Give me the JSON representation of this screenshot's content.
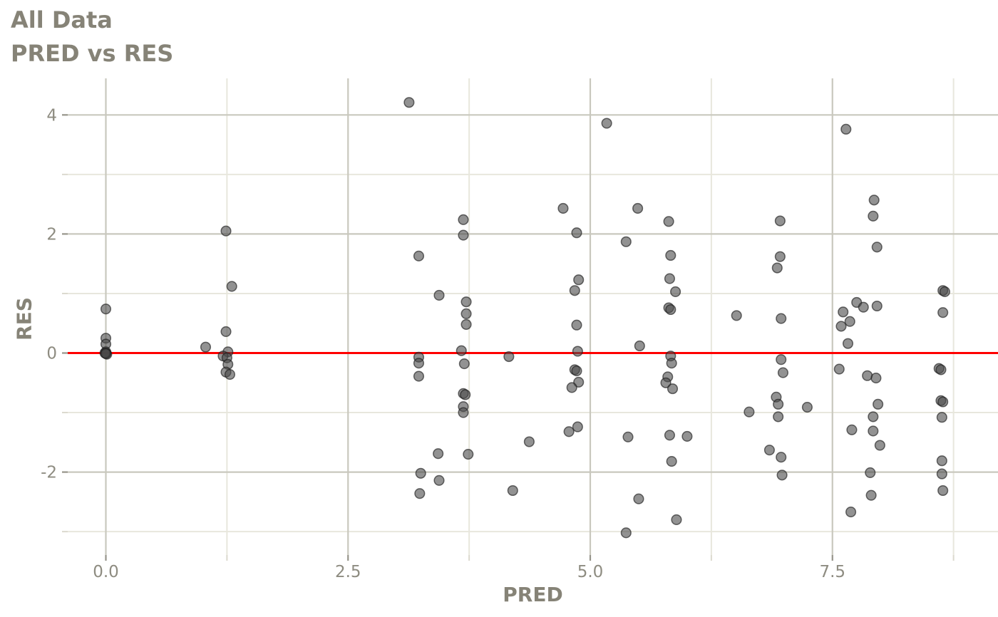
{
  "title": "All Data",
  "subtitle": "PRED vs RES",
  "chart_data": {
    "type": "scatter",
    "title": "All Data",
    "subtitle": "PRED vs RES",
    "xlabel": "PRED",
    "ylabel": "RES",
    "xlim": [
      -0.39,
      9.21
    ],
    "ylim": [
      -3.39,
      4.61
    ],
    "grid": true,
    "legend": "none",
    "x_ticks": {
      "values": [
        0,
        2.5,
        5,
        7.5
      ],
      "labels": [
        "0.0",
        "2.5",
        "5.0",
        "7.5"
      ],
      "minor": [
        1.25,
        3.75,
        6.25,
        8.75
      ]
    },
    "y_ticks": {
      "values": [
        4,
        2,
        0,
        -2
      ],
      "labels": [
        "4",
        "2",
        "0",
        "-2"
      ],
      "minor": [
        3,
        1,
        -1,
        -3
      ]
    },
    "reference_line": {
      "y": 0,
      "color": "#ff0000"
    },
    "style": {
      "major_grid_color": "#c9c8be",
      "minor_grid_color": "#e8e7dd",
      "major_tick_color": "#96948a",
      "minor_tick_color": "#dbd9ce",
      "tick_label_color": "#8e8c81",
      "point_fill": "#4a4a4a",
      "point_stroke": "#1f1f1f",
      "point_fill_opacity": 0.6,
      "point_stroke_opacity": 0.65
    },
    "points": [
      [
        0.0,
        0.74
      ],
      [
        0.0,
        0.25
      ],
      [
        0.0,
        0.15
      ],
      [
        0.0,
        0.02
      ],
      [
        0.0,
        0.0
      ],
      [
        0.01,
        -0.02
      ],
      [
        -0.01,
        0.0
      ],
      [
        0.0,
        -0.01
      ],
      [
        1.03,
        0.1
      ],
      [
        1.24,
        2.05
      ],
      [
        1.3,
        1.12
      ],
      [
        1.24,
        0.36
      ],
      [
        1.26,
        0.02
      ],
      [
        1.21,
        -0.05
      ],
      [
        1.25,
        -0.08
      ],
      [
        1.26,
        -0.19
      ],
      [
        1.24,
        -0.32
      ],
      [
        1.28,
        -0.36
      ],
      [
        3.13,
        4.21
      ],
      [
        3.23,
        1.63
      ],
      [
        3.23,
        -0.07
      ],
      [
        3.23,
        -0.17
      ],
      [
        3.23,
        -0.39
      ],
      [
        3.25,
        -2.02
      ],
      [
        3.24,
        -2.36
      ],
      [
        3.44,
        0.97
      ],
      [
        3.43,
        -1.69
      ],
      [
        3.44,
        -2.14
      ],
      [
        3.69,
        2.24
      ],
      [
        3.69,
        1.98
      ],
      [
        3.72,
        0.86
      ],
      [
        3.72,
        0.66
      ],
      [
        3.72,
        0.48
      ],
      [
        3.67,
        0.04
      ],
      [
        3.7,
        -0.18
      ],
      [
        3.69,
        -0.68
      ],
      [
        3.71,
        -0.7
      ],
      [
        3.69,
        -0.9
      ],
      [
        3.69,
        -1.0
      ],
      [
        3.74,
        -1.7
      ],
      [
        4.16,
        -0.06
      ],
      [
        4.37,
        -1.49
      ],
      [
        4.2,
        -2.31
      ],
      [
        4.72,
        2.43
      ],
      [
        4.86,
        2.02
      ],
      [
        4.88,
        1.23
      ],
      [
        4.84,
        1.05
      ],
      [
        4.86,
        0.47
      ],
      [
        4.87,
        0.03
      ],
      [
        4.84,
        -0.28
      ],
      [
        4.86,
        -0.3
      ],
      [
        4.88,
        -0.49
      ],
      [
        4.81,
        -0.58
      ],
      [
        4.87,
        -1.24
      ],
      [
        4.78,
        -1.32
      ],
      [
        5.17,
        3.86
      ],
      [
        5.49,
        2.43
      ],
      [
        5.37,
        1.87
      ],
      [
        5.51,
        0.12
      ],
      [
        5.39,
        -1.41
      ],
      [
        5.5,
        -2.45
      ],
      [
        5.37,
        -3.02
      ],
      [
        5.81,
        2.21
      ],
      [
        5.83,
        1.64
      ],
      [
        5.82,
        1.25
      ],
      [
        5.88,
        1.03
      ],
      [
        5.81,
        0.76
      ],
      [
        5.83,
        0.73
      ],
      [
        5.83,
        -0.05
      ],
      [
        5.84,
        -0.17
      ],
      [
        5.8,
        -0.4
      ],
      [
        5.78,
        -0.5
      ],
      [
        5.85,
        -0.6
      ],
      [
        5.82,
        -1.38
      ],
      [
        6.0,
        -1.4
      ],
      [
        5.84,
        -1.82
      ],
      [
        5.89,
        -2.8
      ],
      [
        6.51,
        0.63
      ],
      [
        6.64,
        -0.99
      ],
      [
        6.85,
        -1.63
      ],
      [
        6.96,
        2.22
      ],
      [
        6.96,
        1.62
      ],
      [
        6.93,
        1.43
      ],
      [
        6.97,
        0.58
      ],
      [
        6.97,
        -0.11
      ],
      [
        6.99,
        -0.33
      ],
      [
        6.92,
        -0.74
      ],
      [
        6.94,
        -0.86
      ],
      [
        6.94,
        -1.07
      ],
      [
        6.97,
        -1.75
      ],
      [
        6.98,
        -2.05
      ],
      [
        7.24,
        -0.91
      ],
      [
        7.64,
        3.76
      ],
      [
        7.93,
        2.57
      ],
      [
        7.92,
        2.3
      ],
      [
        7.96,
        1.78
      ],
      [
        7.75,
        0.85
      ],
      [
        7.96,
        0.79
      ],
      [
        7.82,
        0.77
      ],
      [
        7.61,
        0.69
      ],
      [
        7.68,
        0.53
      ],
      [
        7.59,
        0.45
      ],
      [
        7.66,
        0.16
      ],
      [
        7.57,
        -0.27
      ],
      [
        7.86,
        -0.38
      ],
      [
        7.95,
        -0.42
      ],
      [
        7.97,
        -0.86
      ],
      [
        7.92,
        -1.07
      ],
      [
        7.7,
        -1.29
      ],
      [
        7.92,
        -1.31
      ],
      [
        7.99,
        -1.55
      ],
      [
        7.89,
        -2.01
      ],
      [
        7.9,
        -2.39
      ],
      [
        7.69,
        -2.67
      ],
      [
        8.64,
        1.05
      ],
      [
        8.66,
        1.03
      ],
      [
        8.64,
        0.68
      ],
      [
        8.6,
        -0.26
      ],
      [
        8.62,
        -0.28
      ],
      [
        8.62,
        -0.8
      ],
      [
        8.64,
        -0.82
      ],
      [
        8.63,
        -1.08
      ],
      [
        8.63,
        -1.81
      ],
      [
        8.63,
        -2.03
      ],
      [
        8.64,
        -2.31
      ]
    ]
  }
}
